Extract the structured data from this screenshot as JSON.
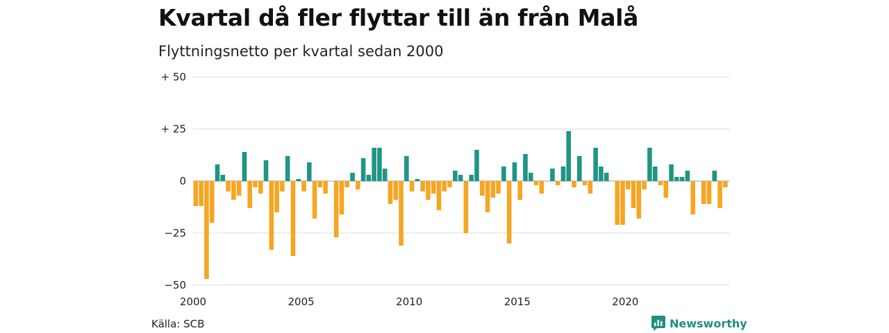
{
  "header": {
    "title": "Kvartal då fler flyttar till än från Malå",
    "subtitle": "Flyttningsnetto per kvartal sedan 2000"
  },
  "footer": {
    "source": "Källa: SCB",
    "brand": "Newsworthy"
  },
  "colors": {
    "positive": "#1f9585",
    "negative": "#f5a623",
    "grid": "#d9d9d9",
    "brand": "#1f8f80"
  },
  "chart_data": {
    "type": "bar",
    "title": "Kvartal då fler flyttar till än från Malå",
    "subtitle": "Flyttningsnetto per kvartal sedan 2000",
    "xlabel": "",
    "ylabel": "",
    "ylim": [
      -50,
      50
    ],
    "xlim": [
      2000,
      2024.75
    ],
    "grid": true,
    "legend": "none",
    "y_ticks": [
      {
        "value": 50,
        "label": "+ 50"
      },
      {
        "value": 25,
        "label": "+ 25"
      },
      {
        "value": 0,
        "label": "0"
      },
      {
        "value": -25,
        "label": "−25"
      },
      {
        "value": -50,
        "label": "−50"
      }
    ],
    "x_ticks": [
      {
        "value": 2000,
        "label": "2000"
      },
      {
        "value": 2005,
        "label": "2005"
      },
      {
        "value": 2010,
        "label": "2010"
      },
      {
        "value": 2015,
        "label": "2015"
      },
      {
        "value": 2020,
        "label": "2020"
      }
    ],
    "categories": [
      "2000 Q1",
      "2000 Q2",
      "2000 Q3",
      "2000 Q4",
      "2001 Q1",
      "2001 Q2",
      "2001 Q3",
      "2001 Q4",
      "2002 Q1",
      "2002 Q2",
      "2002 Q3",
      "2002 Q4",
      "2003 Q1",
      "2003 Q2",
      "2003 Q3",
      "2003 Q4",
      "2004 Q1",
      "2004 Q2",
      "2004 Q3",
      "2004 Q4",
      "2005 Q1",
      "2005 Q2",
      "2005 Q3",
      "2005 Q4",
      "2006 Q1",
      "2006 Q2",
      "2006 Q3",
      "2006 Q4",
      "2007 Q1",
      "2007 Q2",
      "2007 Q3",
      "2007 Q4",
      "2008 Q1",
      "2008 Q2",
      "2008 Q3",
      "2008 Q4",
      "2009 Q1",
      "2009 Q2",
      "2009 Q3",
      "2009 Q4",
      "2010 Q1",
      "2010 Q2",
      "2010 Q3",
      "2010 Q4",
      "2011 Q1",
      "2011 Q2",
      "2011 Q3",
      "2011 Q4",
      "2012 Q1",
      "2012 Q2",
      "2012 Q3",
      "2012 Q4",
      "2013 Q1",
      "2013 Q2",
      "2013 Q3",
      "2013 Q4",
      "2014 Q1",
      "2014 Q2",
      "2014 Q3",
      "2014 Q4",
      "2015 Q1",
      "2015 Q2",
      "2015 Q3",
      "2015 Q4",
      "2016 Q1",
      "2016 Q2",
      "2016 Q3",
      "2016 Q4",
      "2017 Q1",
      "2017 Q2",
      "2017 Q3",
      "2017 Q4",
      "2018 Q1",
      "2018 Q2",
      "2018 Q3",
      "2018 Q4",
      "2019 Q1",
      "2019 Q2",
      "2019 Q3",
      "2019 Q4",
      "2020 Q1",
      "2020 Q2",
      "2020 Q3",
      "2020 Q4",
      "2021 Q1",
      "2021 Q2",
      "2021 Q3",
      "2021 Q4",
      "2022 Q1",
      "2022 Q2",
      "2022 Q3",
      "2022 Q4",
      "2023 Q1",
      "2023 Q2",
      "2023 Q3",
      "2023 Q4",
      "2024 Q1",
      "2024 Q2",
      "2024 Q3",
      "2024 Q4"
    ],
    "values": [
      -12,
      -12,
      -47,
      -20,
      8,
      3,
      -5,
      -9,
      -7,
      14,
      -13,
      -3,
      -6,
      10,
      -33,
      -15,
      -5,
      12,
      -36,
      1,
      -5,
      9,
      -18,
      -3,
      -6,
      0,
      -27,
      -16,
      -3,
      4,
      -4,
      11,
      3,
      16,
      16,
      6,
      -11,
      -9,
      -31,
      12,
      -5,
      1,
      -5,
      -9,
      -6,
      -14,
      -5,
      -3,
      5,
      3,
      -25,
      3,
      15,
      -7,
      -15,
      -8,
      -6,
      7,
      -30,
      9,
      -9,
      13,
      4,
      -2,
      -6,
      0,
      6,
      -2,
      7,
      24,
      -3,
      12,
      -2,
      -6,
      16,
      7,
      4,
      0,
      -21,
      -21,
      -4,
      -13,
      -18,
      -4,
      16,
      7,
      -2,
      -8,
      8,
      2,
      2,
      5,
      -16,
      0,
      -11,
      -11,
      5,
      -13,
      -3,
      0
    ]
  }
}
